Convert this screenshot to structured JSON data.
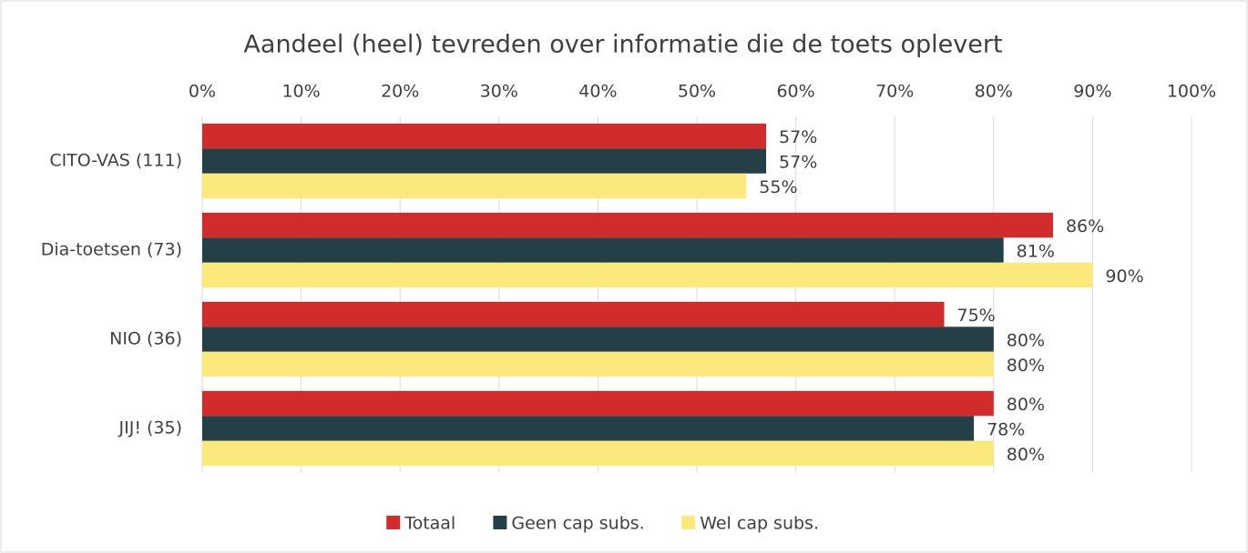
{
  "chart_data": {
    "type": "bar",
    "orientation": "horizontal",
    "title": "Aandeel (heel) tevreden over informatie die de toets oplevert",
    "categories": [
      "CITO-VAS (111)",
      "Dia-toetsen (73)",
      "NIO (36)",
      "JIJ! (35)"
    ],
    "series": [
      {
        "name": "Totaal",
        "color": "#d22b2b",
        "values": [
          57,
          86,
          75,
          80
        ],
        "value_labels": [
          "57%",
          "86%",
          "75%",
          "80%"
        ]
      },
      {
        "name": "Geen cap subs.",
        "color": "#253f47",
        "values": [
          57,
          81,
          80,
          78
        ],
        "value_labels": [
          "57%",
          "81%",
          "80%",
          "78%"
        ]
      },
      {
        "name": "Wel cap subs.",
        "color": "#fbe97b",
        "values": [
          55,
          90,
          80,
          80
        ],
        "value_labels": [
          "55%",
          "90%",
          "80%",
          "80%"
        ]
      }
    ],
    "xlim": [
      0,
      100
    ],
    "xticks": [
      {
        "value": 0,
        "label": "0%"
      },
      {
        "value": 10,
        "label": "10%"
      },
      {
        "value": 20,
        "label": "20%"
      },
      {
        "value": 30,
        "label": "30%"
      },
      {
        "value": 40,
        "label": "40%"
      },
      {
        "value": 50,
        "label": "50%"
      },
      {
        "value": 60,
        "label": "60%"
      },
      {
        "value": 70,
        "label": "70%"
      },
      {
        "value": 80,
        "label": "80%"
      },
      {
        "value": 90,
        "label": "90%"
      },
      {
        "value": 100,
        "label": "100%"
      }
    ],
    "grid": true,
    "legend": "bottom"
  }
}
